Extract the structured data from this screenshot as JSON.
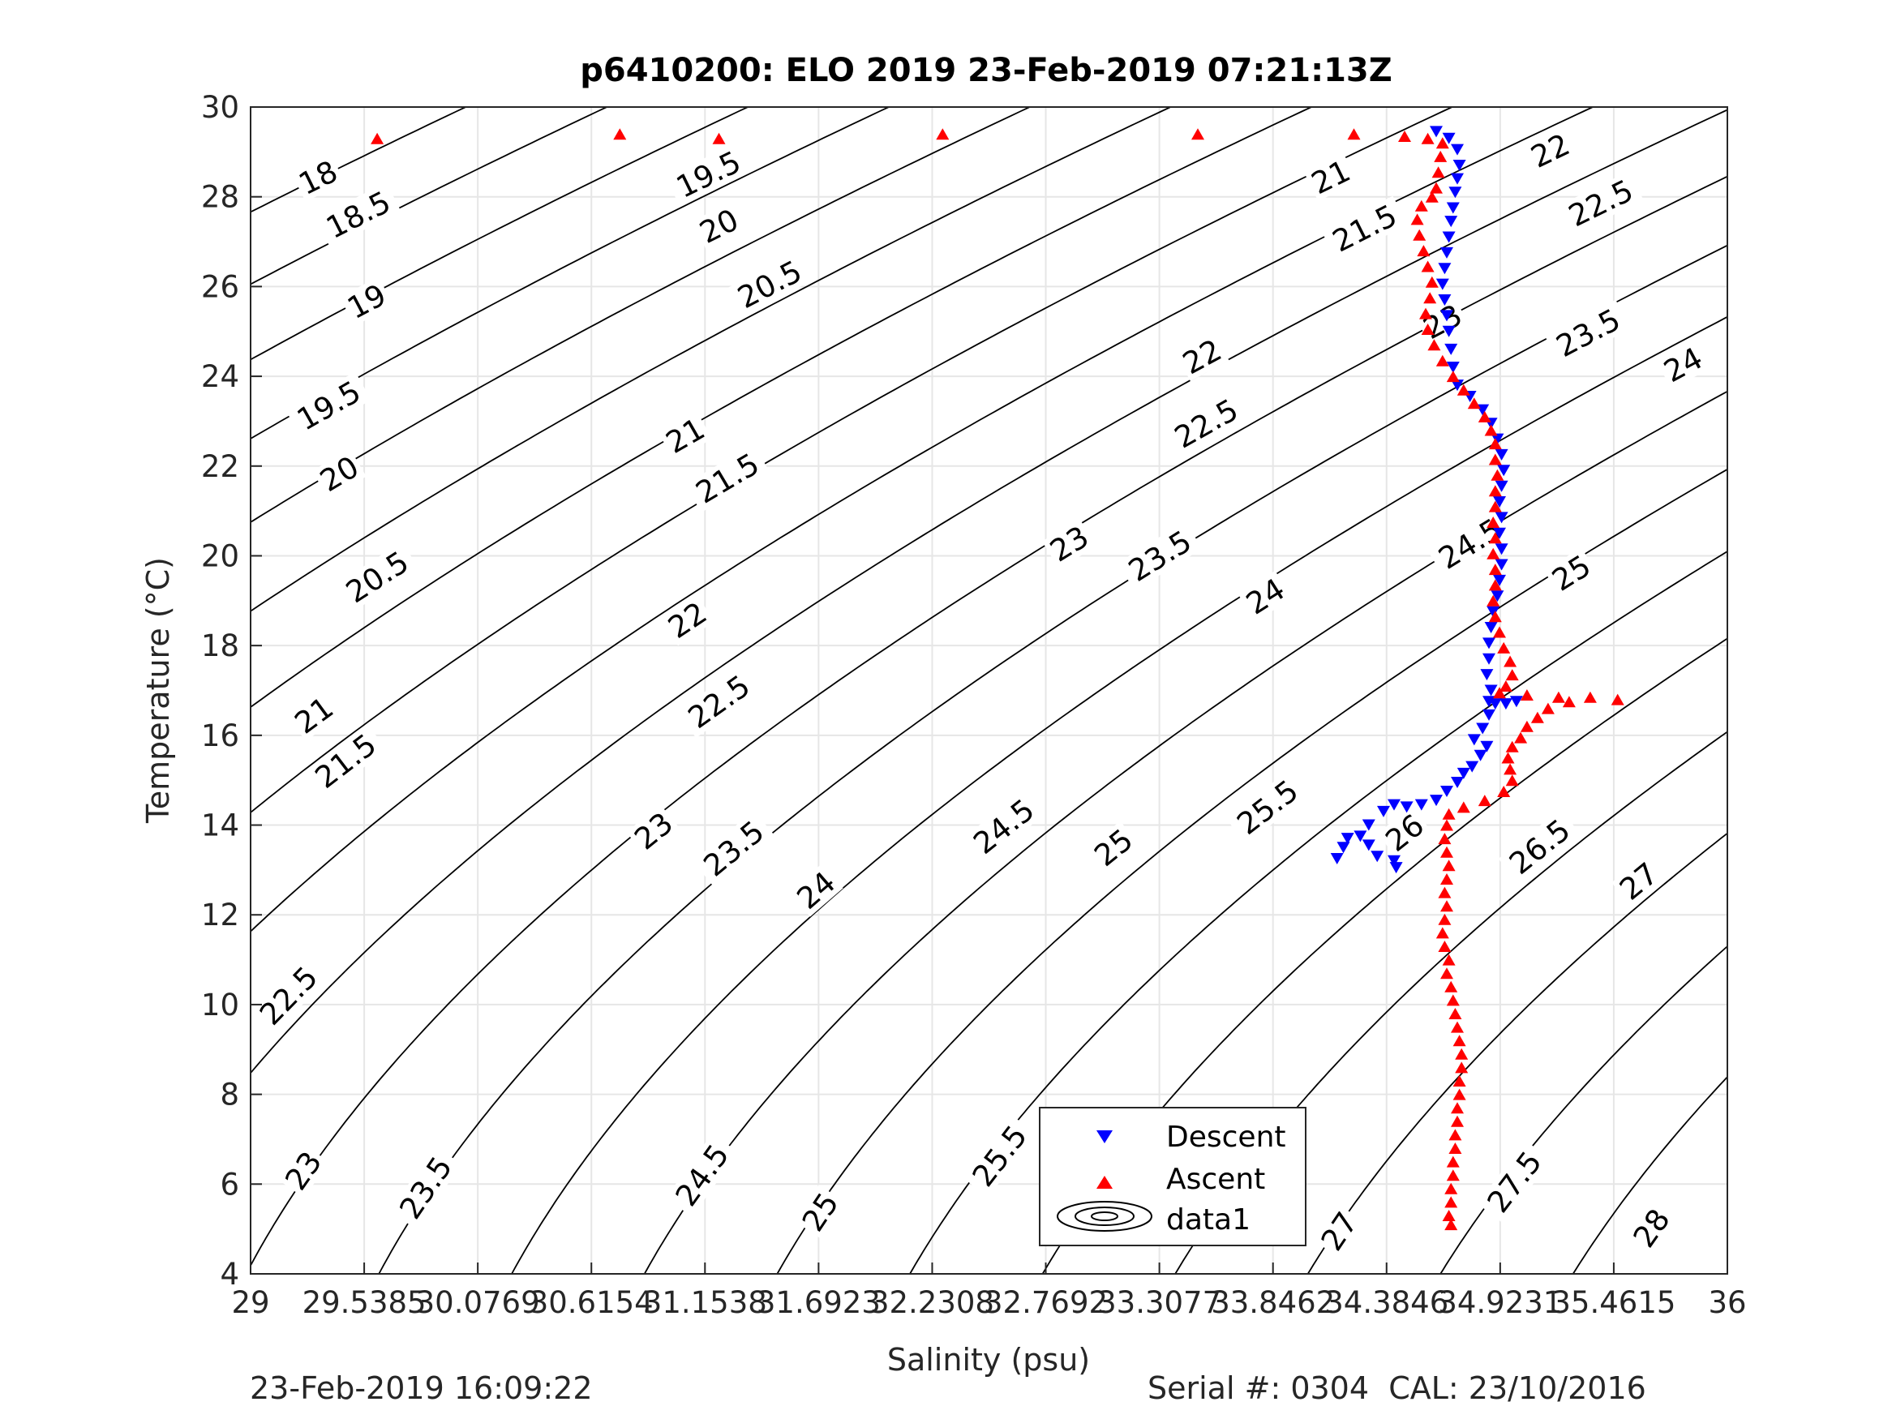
{
  "figure": {
    "title": "p6410200: ELO 2019 23-Feb-2019 07:21:13Z",
    "footer_left": "23-Feb-2019 16:09:22",
    "footer_right": "Serial #: 0304  CAL: 23/10/2016"
  },
  "chart_data": {
    "type": "scatter",
    "title": "p6410200: ELO 2019 23-Feb-2019 07:21:13Z",
    "xlabel": "Salinity (psu)",
    "ylabel": "Temperature (°C)",
    "xlim": [
      29,
      36
    ],
    "ylim": [
      4,
      30
    ],
    "x_ticks": [
      29,
      29.5385,
      30.0769,
      30.6154,
      31.1538,
      31.6923,
      32.2308,
      32.7692,
      33.3077,
      33.8462,
      34.3846,
      34.9231,
      35.4615,
      36
    ],
    "x_tick_labels": [
      "29",
      "29.5385",
      "30.0769",
      "30.6154",
      "31.1538",
      "31.6923",
      "32.2308",
      "32.7692",
      "33.3077",
      "33.8462",
      "34.3846",
      "34.9231",
      "35.4615",
      "36"
    ],
    "y_ticks": [
      4,
      6,
      8,
      10,
      12,
      14,
      16,
      18,
      20,
      22,
      24,
      26,
      28,
      30
    ],
    "y_tick_labels": [
      "4",
      "6",
      "8",
      "10",
      "12",
      "14",
      "16",
      "18",
      "20",
      "22",
      "24",
      "26",
      "28",
      "30"
    ],
    "grid": true,
    "legend": {
      "position": "bottom-center",
      "entries": [
        {
          "name": "Descent",
          "color": "#0000ff",
          "marker": "triangle-down"
        },
        {
          "name": "Ascent",
          "color": "#ff0000",
          "marker": "triangle-up"
        },
        {
          "name": "data1",
          "color": "#000000",
          "marker": "contour"
        }
      ]
    },
    "contour_levels": [
      18,
      18.5,
      19,
      19.5,
      20,
      20.5,
      21,
      21.5,
      22,
      22.5,
      23,
      23.5,
      24,
      24.5,
      25,
      25.5,
      26,
      26.5,
      27,
      27.5,
      28
    ],
    "contour_labels": [
      {
        "text": "18",
        "s": 29.32,
        "t": 28.43
      },
      {
        "text": "18.5",
        "s": 29.51,
        "t": 27.6
      },
      {
        "text": "19",
        "s": 29.55,
        "t": 25.67
      },
      {
        "text": "19.5",
        "s": 29.37,
        "t": 23.35
      },
      {
        "text": "20",
        "s": 29.42,
        "t": 21.83
      },
      {
        "text": "20.5",
        "s": 29.6,
        "t": 19.53
      },
      {
        "text": "21",
        "s": 29.3,
        "t": 16.45
      },
      {
        "text": "21.5",
        "s": 29.45,
        "t": 15.43
      },
      {
        "text": "22",
        "s": 31.07,
        "t": 18.57
      },
      {
        "text": "22.5",
        "s": 31.22,
        "t": 16.75
      },
      {
        "text": "23",
        "s": 30.91,
        "t": 13.87
      },
      {
        "text": "23.5",
        "s": 31.29,
        "t": 13.48
      },
      {
        "text": "24",
        "s": 31.68,
        "t": 12.55
      },
      {
        "text": "24.5",
        "s": 32.57,
        "t": 13.97
      },
      {
        "text": "25",
        "s": 33.09,
        "t": 13.5
      },
      {
        "text": "25.5",
        "s": 33.82,
        "t": 14.4
      },
      {
        "text": "26",
        "s": 34.47,
        "t": 13.83
      },
      {
        "text": "26.5",
        "s": 35.11,
        "t": 13.52
      },
      {
        "text": "27",
        "s": 35.58,
        "t": 12.75
      },
      {
        "text": "22",
        "s": 33.51,
        "t": 24.44
      },
      {
        "text": "22.5",
        "s": 33.53,
        "t": 22.95
      },
      {
        "text": "23",
        "s": 32.88,
        "t": 20.27
      },
      {
        "text": "23.5",
        "s": 33.31,
        "t": 20.0
      },
      {
        "text": "24",
        "s": 33.81,
        "t": 19.1
      },
      {
        "text": "24.5",
        "s": 34.78,
        "t": 20.27
      },
      {
        "text": "25",
        "s": 35.26,
        "t": 19.62
      },
      {
        "text": "23",
        "s": 34.65,
        "t": 25.22
      },
      {
        "text": "23.5",
        "s": 35.34,
        "t": 24.97
      },
      {
        "text": "24",
        "s": 35.79,
        "t": 24.26
      },
      {
        "text": "22",
        "s": 35.16,
        "t": 29.03
      },
      {
        "text": "22.5",
        "s": 35.4,
        "t": 27.86
      },
      {
        "text": "21",
        "s": 34.12,
        "t": 28.44
      },
      {
        "text": "21.5",
        "s": 34.28,
        "t": 27.3
      },
      {
        "text": "19.5",
        "s": 31.17,
        "t": 28.5
      },
      {
        "text": "20",
        "s": 31.22,
        "t": 27.35
      },
      {
        "text": "20.5",
        "s": 31.46,
        "t": 26.05
      },
      {
        "text": "21",
        "s": 31.06,
        "t": 22.68
      },
      {
        "text": "21.5",
        "s": 31.26,
        "t": 21.73
      },
      {
        "text": "22.5",
        "s": 29.18,
        "t": 10.2
      },
      {
        "text": "23",
        "s": 29.25,
        "t": 6.3
      },
      {
        "text": "23.5",
        "s": 29.83,
        "t": 5.92
      },
      {
        "text": "24.5",
        "s": 31.14,
        "t": 6.2
      },
      {
        "text": "25",
        "s": 31.7,
        "t": 5.38
      },
      {
        "text": "25.5",
        "s": 32.55,
        "t": 6.63
      },
      {
        "text": "26",
        "s": 33.01,
        "t": 6.13
      },
      {
        "text": "26.5",
        "s": 33.64,
        "t": 5.57
      },
      {
        "text": "27",
        "s": 34.16,
        "t": 4.95
      },
      {
        "text": "27.5",
        "s": 34.99,
        "t": 6.05
      },
      {
        "text": "28",
        "s": 35.64,
        "t": 5.02
      }
    ],
    "series": [
      {
        "name": "Descent",
        "color": "#0000ff",
        "marker": "triangle-down",
        "points": [
          [
            34.62,
            29.45
          ],
          [
            34.68,
            29.3
          ],
          [
            34.72,
            29.05
          ],
          [
            34.73,
            28.7
          ],
          [
            34.72,
            28.4
          ],
          [
            34.71,
            28.1
          ],
          [
            34.7,
            27.75
          ],
          [
            34.69,
            27.45
          ],
          [
            34.68,
            27.1
          ],
          [
            34.67,
            26.75
          ],
          [
            34.66,
            26.4
          ],
          [
            34.65,
            26.05
          ],
          [
            34.66,
            25.7
          ],
          [
            34.67,
            25.35
          ],
          [
            34.68,
            25.0
          ],
          [
            34.69,
            24.6
          ],
          [
            34.7,
            24.2
          ],
          [
            34.72,
            23.8
          ],
          [
            34.78,
            23.55
          ],
          [
            34.84,
            23.25
          ],
          [
            34.88,
            22.95
          ],
          [
            34.91,
            22.6
          ],
          [
            34.93,
            22.25
          ],
          [
            34.94,
            21.9
          ],
          [
            34.93,
            21.55
          ],
          [
            34.92,
            21.2
          ],
          [
            34.93,
            20.85
          ],
          [
            34.92,
            20.5
          ],
          [
            34.93,
            20.15
          ],
          [
            34.93,
            19.8
          ],
          [
            34.92,
            19.45
          ],
          [
            34.91,
            19.1
          ],
          [
            34.89,
            18.75
          ],
          [
            34.88,
            18.4
          ],
          [
            34.87,
            18.05
          ],
          [
            34.87,
            17.7
          ],
          [
            34.86,
            17.35
          ],
          [
            34.88,
            17.0
          ],
          [
            34.87,
            16.75
          ],
          [
            34.9,
            16.7
          ],
          [
            34.95,
            16.7
          ],
          [
            35.0,
            16.75
          ],
          [
            34.87,
            16.45
          ],
          [
            34.84,
            16.15
          ],
          [
            34.8,
            15.9
          ],
          [
            34.86,
            15.75
          ],
          [
            34.83,
            15.55
          ],
          [
            34.79,
            15.3
          ],
          [
            34.75,
            15.15
          ],
          [
            34.72,
            14.95
          ],
          [
            34.67,
            14.75
          ],
          [
            34.62,
            14.55
          ],
          [
            34.55,
            14.45
          ],
          [
            34.48,
            14.4
          ],
          [
            34.42,
            14.45
          ],
          [
            34.37,
            14.3
          ],
          [
            34.3,
            14.0
          ],
          [
            34.26,
            13.75
          ],
          [
            34.2,
            13.7
          ],
          [
            34.18,
            13.5
          ],
          [
            34.15,
            13.25
          ],
          [
            34.3,
            13.55
          ],
          [
            34.34,
            13.3
          ],
          [
            34.42,
            13.2
          ],
          [
            34.43,
            13.05
          ]
        ]
      },
      {
        "name": "Ascent",
        "color": "#ff0000",
        "marker": "triangle-up",
        "points": [
          [
            29.6,
            29.3
          ],
          [
            30.75,
            29.4
          ],
          [
            31.22,
            29.3
          ],
          [
            32.28,
            29.4
          ],
          [
            33.49,
            29.4
          ],
          [
            34.23,
            29.4
          ],
          [
            34.47,
            29.35
          ],
          [
            34.58,
            29.3
          ],
          [
            34.65,
            29.2
          ],
          [
            34.64,
            28.9
          ],
          [
            34.63,
            28.55
          ],
          [
            34.62,
            28.2
          ],
          [
            34.6,
            28.0
          ],
          [
            34.55,
            27.8
          ],
          [
            34.53,
            27.5
          ],
          [
            34.54,
            27.15
          ],
          [
            34.56,
            26.8
          ],
          [
            34.58,
            26.45
          ],
          [
            34.6,
            26.1
          ],
          [
            34.59,
            25.75
          ],
          [
            34.57,
            25.4
          ],
          [
            34.58,
            25.05
          ],
          [
            34.61,
            24.7
          ],
          [
            34.65,
            24.35
          ],
          [
            34.7,
            24.0
          ],
          [
            34.75,
            23.7
          ],
          [
            34.8,
            23.4
          ],
          [
            34.85,
            23.1
          ],
          [
            34.88,
            22.8
          ],
          [
            34.9,
            22.5
          ],
          [
            34.9,
            22.15
          ],
          [
            34.91,
            21.8
          ],
          [
            34.9,
            21.45
          ],
          [
            34.9,
            21.1
          ],
          [
            34.89,
            20.75
          ],
          [
            34.9,
            20.4
          ],
          [
            34.89,
            20.05
          ],
          [
            34.9,
            19.7
          ],
          [
            34.9,
            19.35
          ],
          [
            34.89,
            19.0
          ],
          [
            34.9,
            18.65
          ],
          [
            34.92,
            18.3
          ],
          [
            34.94,
            17.95
          ],
          [
            34.97,
            17.65
          ],
          [
            34.98,
            17.35
          ],
          [
            34.95,
            17.1
          ],
          [
            34.92,
            16.95
          ],
          [
            35.05,
            16.9
          ],
          [
            35.2,
            16.85
          ],
          [
            35.35,
            16.85
          ],
          [
            35.48,
            16.8
          ],
          [
            35.25,
            16.75
          ],
          [
            35.15,
            16.6
          ],
          [
            35.1,
            16.4
          ],
          [
            35.05,
            16.2
          ],
          [
            35.02,
            15.95
          ],
          [
            34.98,
            15.75
          ],
          [
            34.96,
            15.5
          ],
          [
            34.97,
            15.25
          ],
          [
            34.98,
            15.0
          ],
          [
            34.94,
            14.75
          ],
          [
            34.85,
            14.55
          ],
          [
            34.75,
            14.4
          ],
          [
            34.68,
            14.25
          ],
          [
            34.67,
            14.0
          ],
          [
            34.66,
            13.7
          ],
          [
            34.67,
            13.4
          ],
          [
            34.68,
            13.1
          ],
          [
            34.67,
            12.8
          ],
          [
            34.66,
            12.5
          ],
          [
            34.67,
            12.2
          ],
          [
            34.66,
            11.9
          ],
          [
            34.65,
            11.6
          ],
          [
            34.66,
            11.3
          ],
          [
            34.68,
            11.0
          ],
          [
            34.67,
            10.7
          ],
          [
            34.69,
            10.4
          ],
          [
            34.7,
            10.1
          ],
          [
            34.71,
            9.8
          ],
          [
            34.72,
            9.5
          ],
          [
            34.73,
            9.2
          ],
          [
            34.74,
            8.9
          ],
          [
            34.74,
            8.6
          ],
          [
            34.73,
            8.3
          ],
          [
            34.73,
            8.0
          ],
          [
            34.72,
            7.7
          ],
          [
            34.72,
            7.4
          ],
          [
            34.71,
            7.1
          ],
          [
            34.71,
            6.8
          ],
          [
            34.7,
            6.5
          ],
          [
            34.7,
            6.2
          ],
          [
            34.69,
            5.9
          ],
          [
            34.69,
            5.6
          ],
          [
            34.68,
            5.3
          ],
          [
            34.69,
            5.1
          ]
        ]
      }
    ]
  }
}
